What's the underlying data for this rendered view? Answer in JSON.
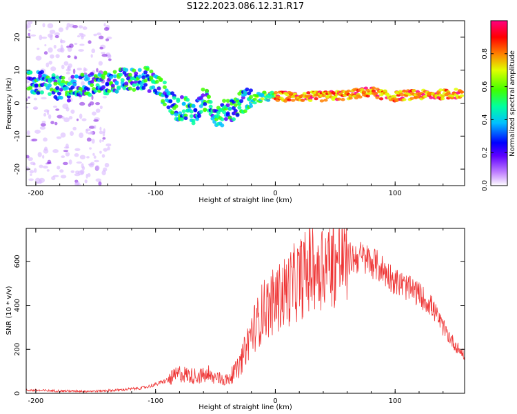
{
  "figure": {
    "title": "S122.2023.086.12.31.R17"
  },
  "chart_data": [
    {
      "type": "heatmap",
      "xlabel": "Height of straight line (km)",
      "ylabel": "Frequency (Hz)",
      "xlim": [
        -208,
        158
      ],
      "ylim": [
        -25,
        25
      ],
      "x_ticks": [
        -200,
        -100,
        0,
        100
      ],
      "y_ticks": [
        -20,
        -10,
        0,
        10,
        20
      ],
      "ridge": {
        "x": [
          -208,
          -195,
          -185,
          -175,
          -165,
          -150,
          -140,
          -130,
          -120,
          -110,
          -100,
          -95,
          -90,
          -85,
          -80,
          -75,
          -70,
          -65,
          -60,
          -55,
          -50,
          -45,
          -40,
          -35,
          -30,
          -25,
          -20,
          -10,
          0,
          20,
          40,
          60,
          70,
          80,
          85,
          90,
          95,
          100,
          110,
          130,
          158
        ],
        "freq": [
          6,
          6,
          5,
          4,
          5,
          6,
          6,
          7,
          7,
          8,
          6,
          4,
          2,
          -1,
          -2,
          -1,
          -3,
          -2,
          1,
          0,
          -3,
          -4,
          -1,
          -2,
          0,
          1,
          1,
          2,
          2,
          2,
          2,
          2.5,
          3,
          3.5,
          3,
          2.5,
          2,
          2,
          2.5,
          2.5,
          3
        ]
      },
      "colorbar": {
        "label": "Normalized spectral amplitude",
        "range": [
          0,
          1
        ],
        "ticks": [
          "0.0",
          "0.2",
          "0.4",
          "0.6",
          "0.8"
        ],
        "colors": [
          "#ffffff",
          "#c080ff",
          "#6000ff",
          "#0000ff",
          "#00c0ff",
          "#00ffa0",
          "#40ff00",
          "#e0ff00",
          "#ff8000",
          "#ff0000",
          "#ff0080"
        ]
      }
    },
    {
      "type": "line",
      "xlabel": "Height of straight line (km)",
      "ylabel": "SNR (10 * v/v)",
      "xlim": [
        -208,
        158
      ],
      "ylim": [
        0,
        750
      ],
      "x_ticks": [
        -200,
        -100,
        0,
        100
      ],
      "y_ticks": [
        0,
        200,
        400,
        600
      ],
      "color": "#ee3333",
      "envelope": {
        "x": [
          -208,
          -190,
          -170,
          -150,
          -130,
          -120,
          -110,
          -100,
          -90,
          -80,
          -70,
          -60,
          -50,
          -40,
          -30,
          -25,
          -20,
          -15,
          -10,
          0,
          10,
          20,
          30,
          40,
          50,
          60,
          70,
          80,
          90,
          100,
          110,
          120,
          130,
          140,
          150,
          158
        ],
        "snr": [
          15,
          12,
          10,
          10,
          15,
          20,
          25,
          40,
          60,
          90,
          80,
          80,
          70,
          60,
          120,
          200,
          280,
          320,
          380,
          420,
          470,
          520,
          570,
          590,
          600,
          610,
          620,
          600,
          560,
          510,
          480,
          450,
          400,
          300,
          220,
          170
        ]
      }
    }
  ]
}
